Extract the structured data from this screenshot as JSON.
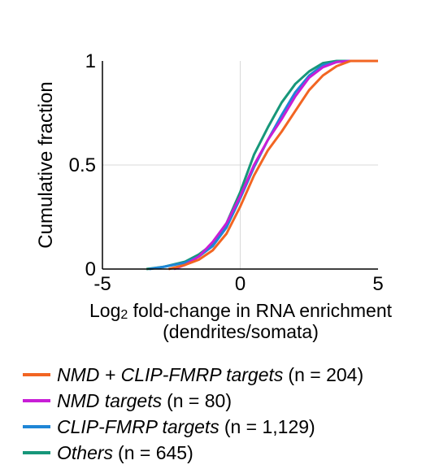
{
  "chart_data": {
    "type": "line",
    "title": "",
    "xlabel_main": "Log",
    "xlabel_subscript": "2",
    "xlabel_rest": " fold-change in RNA enrichment",
    "xlabel_line2": "(dendrites/somata)",
    "ylabel": "Cumulative fraction",
    "xlim": [
      -5,
      5
    ],
    "ylim": [
      0,
      1
    ],
    "xticks": [
      -5,
      0,
      5
    ],
    "xtick_labels": [
      "-5",
      "0",
      "5"
    ],
    "yticks": [
      0,
      0.5,
      1
    ],
    "ytick_labels": [
      "0",
      "0.5",
      "1"
    ],
    "grid": true,
    "legend_position": "bottom",
    "series": [
      {
        "name": "NMD + CLIP-FMRP targets",
        "count_label": "(n = 204)",
        "color": "#f26522",
        "points": [
          [
            -2.6,
            0
          ],
          [
            -2,
            0.02
          ],
          [
            -1.5,
            0.045
          ],
          [
            -1,
            0.09
          ],
          [
            -0.5,
            0.17
          ],
          [
            0,
            0.3
          ],
          [
            0.5,
            0.45
          ],
          [
            1,
            0.57
          ],
          [
            1.5,
            0.66
          ],
          [
            2,
            0.76
          ],
          [
            2.5,
            0.86
          ],
          [
            3,
            0.93
          ],
          [
            3.5,
            0.975
          ],
          [
            4,
            1
          ],
          [
            5,
            1
          ]
        ]
      },
      {
        "name": "NMD targets",
        "count_label": "(n = 80)",
        "color": "#c81ed6",
        "points": [
          [
            -2.4,
            0
          ],
          [
            -2,
            0.02
          ],
          [
            -1.5,
            0.06
          ],
          [
            -1,
            0.13
          ],
          [
            -0.5,
            0.22
          ],
          [
            0,
            0.35
          ],
          [
            0.5,
            0.5
          ],
          [
            1,
            0.62
          ],
          [
            1.5,
            0.72
          ],
          [
            2,
            0.83
          ],
          [
            2.5,
            0.92
          ],
          [
            3,
            0.97
          ],
          [
            3.5,
            0.995
          ],
          [
            4,
            1
          ],
          [
            5,
            1
          ]
        ]
      },
      {
        "name": "CLIP-FMRP targets",
        "count_label": "(n = 1,129)",
        "color": "#1f86d6",
        "points": [
          [
            -3.3,
            0
          ],
          [
            -2.8,
            0.01
          ],
          [
            -2,
            0.03
          ],
          [
            -1.5,
            0.06
          ],
          [
            -1,
            0.11
          ],
          [
            -0.5,
            0.2
          ],
          [
            0,
            0.34
          ],
          [
            0.5,
            0.49
          ],
          [
            1,
            0.62
          ],
          [
            1.5,
            0.74
          ],
          [
            2,
            0.85
          ],
          [
            2.5,
            0.93
          ],
          [
            3,
            0.98
          ],
          [
            3.5,
            0.995
          ],
          [
            4,
            1
          ],
          [
            5,
            1
          ]
        ]
      },
      {
        "name": "Others",
        "count_label": "(n = 645)",
        "color": "#17977a",
        "points": [
          [
            -3.4,
            0
          ],
          [
            -2.8,
            0.01
          ],
          [
            -2,
            0.035
          ],
          [
            -1.5,
            0.07
          ],
          [
            -1,
            0.12
          ],
          [
            -0.5,
            0.22
          ],
          [
            0,
            0.37
          ],
          [
            0.5,
            0.55
          ],
          [
            1,
            0.68
          ],
          [
            1.5,
            0.8
          ],
          [
            2,
            0.89
          ],
          [
            2.5,
            0.95
          ],
          [
            3,
            0.99
          ],
          [
            3.5,
            1
          ],
          [
            5,
            1
          ]
        ]
      }
    ]
  },
  "page": {
    "edge_glyph": ")"
  }
}
